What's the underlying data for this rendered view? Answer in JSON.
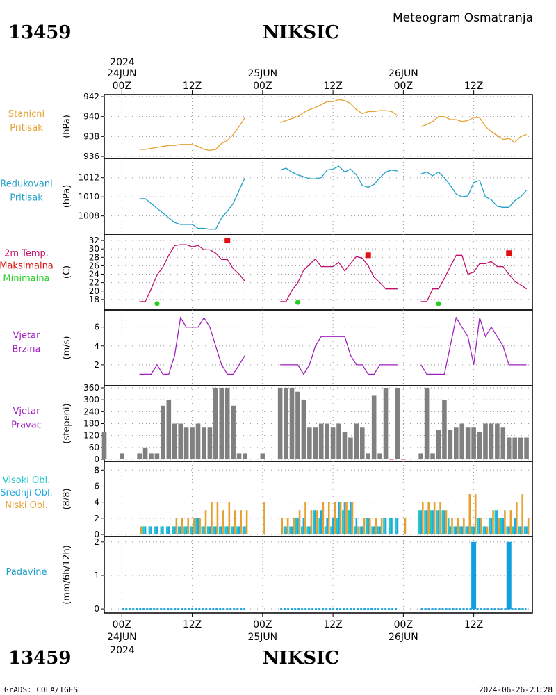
{
  "header": {
    "station_id": "13459",
    "station_name": "NIKSIC",
    "title": "Meteogram Osmatranja",
    "year": "2024"
  },
  "footer": {
    "left": "GrADS: COLA/IGES",
    "right": "2024-06-26-23:28",
    "station_id": "13459",
    "station_name": "NIKSIC",
    "year": "2024"
  },
  "time_axis": {
    "ticks": [
      {
        "hour": 0,
        "label": "00Z"
      },
      {
        "hour": 12,
        "label": "12Z"
      },
      {
        "hour": 24,
        "label": "00Z"
      },
      {
        "hour": 36,
        "label": "12Z"
      },
      {
        "hour": 48,
        "label": "00Z"
      },
      {
        "hour": 60,
        "label": "12Z"
      }
    ],
    "days": [
      {
        "hour": 0,
        "label": "24JUN"
      },
      {
        "hour": 24,
        "label": "25JUN"
      },
      {
        "hour": 48,
        "label": "26JUN"
      }
    ],
    "range_hours": [
      -3,
      70
    ]
  },
  "colors": {
    "pressure": "#e6a030",
    "reduced_pressure": "#20a0c8",
    "temperature": "#c0106a",
    "max_temp": "#e01010",
    "min_temp": "#20d020",
    "wind_speed": "#a020c0",
    "wind_dir_bar": "#808080",
    "high_cloud": "#20c8c8",
    "mid_cloud": "#20a8e0",
    "low_cloud": "#e6a030",
    "precip": "#10a0e0"
  },
  "chart_data": [
    {
      "type": "line",
      "labels": [
        "Stanicni",
        "Pritisak"
      ],
      "ylabel": "(hPa)",
      "ylim": [
        936,
        942
      ],
      "yticks": [
        936,
        938,
        940,
        942
      ],
      "segments": [
        {
          "x": [
            3,
            4,
            5,
            6,
            7,
            8,
            9,
            10,
            11,
            12,
            13,
            14,
            15,
            16,
            17,
            18,
            19,
            20,
            21
          ],
          "y": [
            936.7,
            936.7,
            936.8,
            936.9,
            937.0,
            937.1,
            937.1,
            937.2,
            937.2,
            937.2,
            937.0,
            936.7,
            936.6,
            936.7,
            937.3,
            937.6,
            938.2,
            939.0,
            939.9
          ]
        },
        {
          "x": [
            27,
            28,
            29,
            30,
            31,
            32,
            33,
            34,
            35,
            36,
            37,
            38,
            39,
            40,
            41,
            42,
            43,
            44,
            45,
            46,
            47
          ],
          "y": [
            939.4,
            939.6,
            939.8,
            940.0,
            940.4,
            940.7,
            940.9,
            941.2,
            941.5,
            941.5,
            941.7,
            941.6,
            941.3,
            940.7,
            940.3,
            940.5,
            940.5,
            940.6,
            940.6,
            940.5,
            940.1
          ]
        },
        {
          "x": [
            51,
            52,
            53,
            54,
            55,
            56,
            57,
            58,
            59,
            60,
            61,
            62,
            63,
            64,
            65,
            66,
            67,
            68,
            69
          ],
          "y": [
            939.0,
            939.2,
            939.5,
            940.0,
            940.0,
            939.7,
            939.7,
            939.5,
            939.6,
            939.9,
            939.9,
            939.0,
            938.5,
            938.1,
            937.7,
            937.8,
            937.4,
            938.0,
            938.2
          ]
        }
      ]
    },
    {
      "type": "line",
      "labels": [
        "Redukovani",
        "Pritisak"
      ],
      "ylabel": "(hPa)",
      "ylim": [
        1006.3,
        1013.8
      ],
      "yticks": [
        1008,
        1010,
        1012
      ],
      "segments": [
        {
          "x": [
            3,
            4,
            5,
            6,
            7,
            8,
            9,
            10,
            11,
            12,
            13,
            14,
            15,
            16,
            17,
            18,
            19,
            20,
            21
          ],
          "y": [
            1009.8,
            1009.8,
            1009.3,
            1008.8,
            1008.3,
            1007.8,
            1007.3,
            1007.1,
            1007.1,
            1007.1,
            1006.7,
            1006.7,
            1006.6,
            1006.6,
            1007.8,
            1008.5,
            1009.3,
            1010.7,
            1012.0
          ]
        },
        {
          "x": [
            27,
            28,
            29,
            30,
            31,
            32,
            33,
            34,
            35,
            36,
            37,
            38,
            39,
            40,
            41,
            42,
            43,
            44,
            45,
            46,
            47
          ],
          "y": [
            1012.8,
            1013.0,
            1012.6,
            1012.3,
            1012.1,
            1011.9,
            1011.9,
            1012.0,
            1012.8,
            1012.9,
            1013.2,
            1012.6,
            1012.9,
            1012.3,
            1011.2,
            1011.0,
            1011.3,
            1012.0,
            1012.6,
            1012.8,
            1012.7
          ]
        },
        {
          "x": [
            51,
            52,
            53,
            54,
            55,
            56,
            57,
            58,
            59,
            60,
            61,
            62,
            63,
            64,
            65,
            66,
            67,
            68,
            69
          ],
          "y": [
            1012.4,
            1012.6,
            1012.2,
            1012.6,
            1012.0,
            1011.2,
            1010.3,
            1010.0,
            1010.1,
            1011.5,
            1011.7,
            1010.0,
            1009.7,
            1009.0,
            1008.9,
            1008.9,
            1009.6,
            1010.0,
            1010.7
          ]
        }
      ]
    },
    {
      "type": "line",
      "labels": [
        "2m Temp.",
        "Maksimalna",
        "Minimalna"
      ],
      "ylabel": "(C)",
      "ylim": [
        16,
        33
      ],
      "yticks": [
        18,
        20,
        22,
        24,
        26,
        28,
        30,
        32
      ],
      "segments": [
        {
          "x": [
            3,
            4,
            5,
            6,
            7,
            8,
            9,
            10,
            11,
            12,
            13,
            14,
            15,
            16,
            17,
            18,
            19,
            20,
            21
          ],
          "y": [
            17.5,
            17.5,
            20.5,
            23.8,
            25.7,
            28.5,
            30.8,
            31.0,
            31.0,
            30.5,
            30.8,
            29.8,
            29.8,
            29.0,
            27.5,
            27.5,
            25.3,
            24.0,
            22.3
          ]
        },
        {
          "x": [
            27,
            28,
            29,
            30,
            31,
            32,
            33,
            34,
            35,
            36,
            37,
            38,
            39,
            40,
            41,
            42,
            43,
            44,
            45,
            46,
            47
          ],
          "y": [
            17.5,
            17.5,
            20.2,
            22.0,
            25.0,
            26.3,
            27.6,
            25.8,
            25.8,
            25.8,
            26.8,
            24.8,
            26.5,
            28.2,
            27.8,
            26.0,
            23.3,
            22.0,
            20.5,
            20.5,
            20.5
          ]
        },
        {
          "x": [
            51,
            52,
            53,
            54,
            55,
            56,
            57,
            58,
            59,
            60,
            61,
            62,
            63,
            64,
            65,
            66,
            67,
            68,
            69
          ],
          "y": [
            17.5,
            17.5,
            20.5,
            20.5,
            23.0,
            25.8,
            28.5,
            28.5,
            24.0,
            24.5,
            26.5,
            26.5,
            27.0,
            25.8,
            25.8,
            24.0,
            22.3,
            21.5,
            20.5
          ]
        }
      ],
      "max_points": [
        {
          "x": 18,
          "y": 32.0
        },
        {
          "x": 42,
          "y": 28.5
        },
        {
          "x": 66,
          "y": 29.0
        }
      ],
      "min_points": [
        {
          "x": 6,
          "y": 17.0
        },
        {
          "x": 30,
          "y": 17.3
        },
        {
          "x": 54,
          "y": 17.0
        }
      ]
    },
    {
      "type": "line",
      "labels": [
        "Vjetar",
        "Brzina"
      ],
      "ylabel": "(m/s)",
      "ylim": [
        0,
        7.6
      ],
      "yticks": [
        2,
        4,
        6
      ],
      "segments": [
        {
          "x": [
            3,
            4,
            5,
            6,
            7,
            8,
            9,
            10,
            11,
            12,
            13,
            14,
            15,
            16,
            17,
            18,
            19,
            20,
            21
          ],
          "y": [
            1,
            1,
            1,
            2,
            1,
            1,
            3,
            7,
            6,
            6,
            6,
            7,
            6,
            4,
            2,
            1,
            1,
            2,
            3
          ]
        },
        {
          "x": [
            27,
            28,
            29,
            30,
            31,
            32,
            33,
            34,
            35,
            36,
            37,
            38,
            39,
            40,
            41,
            42,
            43,
            44,
            45,
            46,
            47
          ],
          "y": [
            2,
            2,
            2,
            2,
            1,
            2,
            4,
            5,
            5,
            5,
            5,
            5,
            3,
            2,
            2,
            1,
            1,
            2,
            2,
            2,
            2
          ]
        },
        {
          "x": [
            51,
            52,
            53,
            54,
            55,
            56,
            57,
            58,
            59,
            60,
            61,
            62,
            63,
            64,
            65,
            66,
            67,
            68,
            69
          ],
          "y": [
            2,
            1,
            1,
            1,
            1,
            4,
            7,
            6,
            5,
            2,
            7,
            5,
            6,
            5,
            4,
            2,
            2,
            2,
            2
          ]
        }
      ]
    },
    {
      "type": "bar",
      "labels": [
        "Vjetar",
        "Pravac"
      ],
      "ylabel": "(stepeni)",
      "ylim": [
        0,
        360
      ],
      "yticks": [
        0,
        60,
        120,
        180,
        240,
        300,
        360
      ],
      "x": [
        -3,
        0,
        3,
        4,
        5,
        6,
        7,
        8,
        9,
        10,
        11,
        12,
        13,
        14,
        15,
        16,
        17,
        18,
        19,
        20,
        21,
        24,
        27,
        28,
        29,
        30,
        31,
        32,
        33,
        34,
        35,
        36,
        37,
        38,
        39,
        40,
        41,
        42,
        43,
        44,
        45,
        46,
        47,
        48,
        51,
        52,
        53,
        54,
        55,
        56,
        57,
        58,
        59,
        60,
        61,
        62,
        63,
        64,
        65,
        66,
        67,
        68,
        69
      ],
      "values": [
        140,
        30,
        30,
        60,
        30,
        30,
        270,
        300,
        180,
        180,
        160,
        160,
        180,
        160,
        160,
        360,
        360,
        360,
        270,
        30,
        30,
        30,
        360,
        360,
        360,
        340,
        300,
        160,
        160,
        180,
        180,
        160,
        180,
        140,
        110,
        180,
        160,
        30,
        320,
        30,
        360,
        0,
        360,
        0,
        30,
        360,
        30,
        150,
        300,
        150,
        160,
        180,
        160,
        160,
        140,
        180,
        180,
        180,
        160,
        110,
        110,
        110,
        110
      ]
    },
    {
      "type": "bar",
      "labels": [
        "Visoki Obl.",
        "Srednji Obl.",
        "Niski Obl."
      ],
      "ylabel": "(8/8)",
      "ylim": [
        0,
        8.8
      ],
      "yticks": [
        0,
        2,
        4,
        6,
        8
      ],
      "x": [
        3,
        4,
        5,
        6,
        7,
        8,
        9,
        10,
        11,
        12,
        13,
        14,
        15,
        16,
        17,
        18,
        19,
        20,
        21,
        24,
        27,
        28,
        29,
        30,
        31,
        32,
        33,
        34,
        35,
        36,
        37,
        38,
        39,
        40,
        41,
        42,
        43,
        44,
        45,
        46,
        47,
        48,
        51,
        52,
        53,
        54,
        55,
        56,
        57,
        58,
        59,
        60,
        61,
        62,
        63,
        64,
        65,
        66,
        67,
        68,
        69
      ],
      "series": [
        {
          "name": "Visoki Obl.",
          "values": [
            0,
            1,
            1,
            1,
            1,
            1,
            1,
            1,
            1,
            1,
            2,
            1,
            1,
            1,
            1,
            1,
            1,
            1,
            1,
            0,
            0,
            1,
            1,
            2,
            1,
            1,
            3,
            2,
            1,
            1,
            2,
            3,
            3,
            1,
            1,
            2,
            1,
            1,
            2,
            2,
            2,
            0,
            3,
            3,
            3,
            3,
            3,
            2,
            1,
            1,
            1,
            1,
            2,
            1,
            2,
            3,
            2,
            1,
            1,
            1,
            1
          ]
        },
        {
          "name": "Srednji Obl.",
          "values": [
            0,
            1,
            1,
            1,
            1,
            1,
            1,
            1,
            1,
            1,
            2,
            1,
            1,
            1,
            1,
            1,
            1,
            1,
            1,
            0,
            0,
            1,
            1,
            2,
            2,
            1,
            3,
            3,
            2,
            2,
            4,
            4,
            4,
            2,
            1,
            2,
            1,
            1,
            2,
            2,
            2,
            0,
            3,
            3,
            3,
            3,
            3,
            1,
            1,
            1,
            1,
            1,
            2,
            1,
            2,
            3,
            2,
            1,
            2,
            1,
            1
          ]
        },
        {
          "name": "Niski Obl.",
          "values": [
            1,
            0,
            0,
            0,
            0,
            0,
            2,
            2,
            2,
            2,
            2,
            3,
            4,
            4,
            3,
            4,
            3,
            3,
            3,
            4,
            2,
            2,
            2,
            3,
            4,
            3,
            3,
            4,
            4,
            4,
            4,
            4,
            4,
            1,
            2,
            2,
            2,
            2,
            0,
            0,
            0,
            2,
            4,
            4,
            4,
            4,
            3,
            2,
            2,
            2,
            5,
            5,
            2,
            1,
            3,
            2,
            3,
            3,
            4,
            5,
            2
          ]
        }
      ]
    },
    {
      "type": "bar",
      "labels": [
        "Padavine"
      ],
      "ylabel": "(mm/6h/12h)",
      "ylim": [
        -0.06,
        2.1
      ],
      "yticks": [
        0,
        1,
        2
      ],
      "bars": [
        {
          "x": 60,
          "value": 2.0
        },
        {
          "x": 66,
          "value": 2.0
        }
      ],
      "zero_ranges": [
        [
          0,
          21
        ],
        [
          27,
          47
        ],
        [
          51,
          69
        ]
      ]
    }
  ]
}
